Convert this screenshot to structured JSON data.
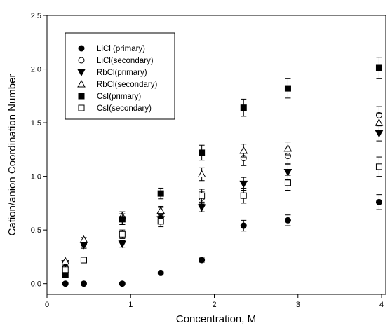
{
  "chart_data": {
    "type": "scatter",
    "title": "",
    "xlabel": "Concentration, M",
    "ylabel": "Cation/anion Coordination Number",
    "xlim": [
      0,
      4.05
    ],
    "ylim": [
      -0.1,
      2.5
    ],
    "xticks": [
      "0",
      "1",
      "2",
      "3",
      "4"
    ],
    "yticks": [
      "0.0",
      "0.5",
      "1.0",
      "1.5",
      "2.0",
      "2.5"
    ],
    "legend_position": "top-left",
    "error_bars": true,
    "series": [
      {
        "name": "LiCl (primary)",
        "marker": "circle-filled",
        "points": [
          [
            0.22,
            0.0,
            0
          ],
          [
            0.44,
            0.0,
            0
          ],
          [
            0.9,
            0.0,
            0
          ],
          [
            1.36,
            0.1,
            0.01
          ],
          [
            1.85,
            0.22,
            0.02
          ],
          [
            2.35,
            0.54,
            0.05
          ],
          [
            2.88,
            0.59,
            0.05
          ],
          [
            3.97,
            0.76,
            0.07
          ]
        ]
      },
      {
        "name": "LiCl(secondary)",
        "marker": "circle-open",
        "points": [
          [
            0.22,
            0.15,
            0.03
          ],
          [
            0.44,
            0.37,
            0.03
          ],
          [
            0.9,
            0.6,
            0.05
          ],
          [
            1.36,
            0.66,
            0.05
          ],
          [
            1.85,
            0.8,
            0.06
          ],
          [
            2.35,
            1.17,
            0.07
          ],
          [
            2.88,
            1.19,
            0.07
          ],
          [
            3.97,
            1.57,
            0.08
          ]
        ]
      },
      {
        "name": "RbCl(primary)",
        "marker": "triangle-down-filled",
        "points": [
          [
            0.22,
            0.19,
            0.02
          ],
          [
            0.44,
            0.36,
            0.03
          ],
          [
            0.9,
            0.37,
            0.03
          ],
          [
            1.36,
            0.6,
            0.04
          ],
          [
            1.85,
            0.71,
            0.04
          ],
          [
            2.35,
            0.93,
            0.06
          ],
          [
            2.88,
            1.04,
            0.07
          ],
          [
            3.97,
            1.4,
            0.07
          ]
        ]
      },
      {
        "name": "RbCl(secondary)",
        "marker": "triangle-up-open",
        "points": [
          [
            0.22,
            0.21,
            0.02
          ],
          [
            0.44,
            0.41,
            0.02
          ],
          [
            0.9,
            0.63,
            0.04
          ],
          [
            1.36,
            0.68,
            0.04
          ],
          [
            1.85,
            1.02,
            0.06
          ],
          [
            2.35,
            1.24,
            0.06
          ],
          [
            2.88,
            1.26,
            0.06
          ],
          [
            3.97,
            1.5,
            0.09
          ]
        ]
      },
      {
        "name": "CsI(primary)",
        "marker": "square-filled",
        "points": [
          [
            0.22,
            0.08,
            0.02
          ],
          [
            0.44,
            0.22,
            0.02
          ],
          [
            0.9,
            0.6,
            0.05
          ],
          [
            1.36,
            0.84,
            0.05
          ],
          [
            1.85,
            1.22,
            0.07
          ],
          [
            2.35,
            1.64,
            0.08
          ],
          [
            2.88,
            1.82,
            0.09
          ],
          [
            3.97,
            2.01,
            0.1
          ]
        ]
      },
      {
        "name": "CsI(secondary)",
        "marker": "square-open",
        "points": [
          [
            0.22,
            0.13,
            0.02
          ],
          [
            0.44,
            0.22,
            0.02
          ],
          [
            0.9,
            0.46,
            0.04
          ],
          [
            1.36,
            0.58,
            0.05
          ],
          [
            1.85,
            0.82,
            0.06
          ],
          [
            2.35,
            0.82,
            0.07
          ],
          [
            2.88,
            0.94,
            0.07
          ],
          [
            3.97,
            1.09,
            0.09
          ]
        ]
      }
    ]
  }
}
